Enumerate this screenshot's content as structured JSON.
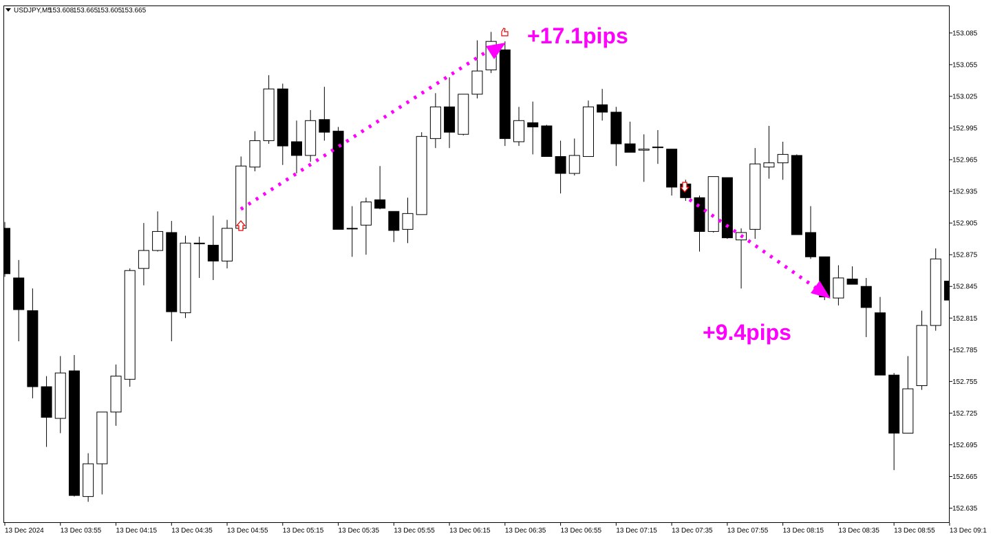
{
  "chart_data": {
    "type": "candlestick",
    "title": "USDJPY,M5",
    "header_values": [
      153.608,
      153.665,
      153.605,
      153.665
    ],
    "annotations": [
      "+17.1pips",
      "+9.4pips"
    ],
    "categories": [
      "13 Dec 2024",
      null,
      null,
      null,
      "13 Dec 03:55",
      null,
      null,
      null,
      "13 Dec 04:15",
      null,
      null,
      null,
      "13 Dec 04:35",
      null,
      null,
      null,
      "13 Dec 04:55",
      null,
      null,
      null,
      "13 Dec 05:15",
      null,
      null,
      null,
      "13 Dec 05:35",
      null,
      null,
      null,
      "13 Dec 05:55",
      null,
      null,
      null,
      "13 Dec 06:15",
      null,
      null,
      null,
      "13 Dec 06:35",
      null,
      null,
      null,
      "13 Dec 06:55",
      null,
      null,
      null,
      "13 Dec 07:15",
      null,
      null,
      null,
      "13 Dec 07:35",
      null,
      null,
      null,
      "13 Dec 07:55",
      null,
      null,
      null,
      "13 Dec 08:15",
      null,
      null,
      null,
      "13 Dec 08:35",
      null,
      null,
      null,
      "13 Dec 08:55",
      null,
      null,
      null,
      "13 Dec 09:1"
    ],
    "open": [
      152.9,
      152.853,
      152.822,
      152.75,
      152.72,
      152.765,
      152.646,
      152.677,
      152.726,
      152.757,
      152.862,
      152.879,
      152.896,
      152.82,
      152.886,
      152.884,
      152.869,
      152.9,
      152.958,
      152.983,
      153.032,
      152.982,
      152.969,
      153.003,
      152.992,
      152.9,
      152.903,
      152.927,
      152.916,
      152.899,
      152.913,
      152.985,
      153.015,
      152.989,
      153.027,
      153.05,
      153.069,
      152.982,
      153.0,
      152.997,
      152.968,
      152.952,
      152.968,
      153.017,
      153.01,
      152.98,
      152.974,
      152.977,
      152.975,
      152.942,
      152.929,
      152.897,
      152.948,
      152.889,
      152.899,
      152.958,
      152.962,
      152.969,
      152.896,
      152.873,
      152.834,
      152.852,
      152.845,
      152.82,
      152.761,
      152.706,
      152.751,
      152.808,
      152.85
    ],
    "high": [
      152.906,
      152.87,
      152.843,
      152.76,
      152.779,
      152.78,
      152.687,
      152.726,
      152.771,
      152.862,
      152.905,
      152.916,
      152.907,
      152.893,
      152.892,
      152.912,
      152.908,
      152.968,
      152.992,
      153.045,
      153.037,
      153.002,
      153.012,
      153.034,
      152.996,
      152.921,
      152.929,
      152.959,
      152.916,
      152.929,
      152.991,
      153.028,
      153.043,
      153.027,
      153.078,
      153.086,
      153.077,
      153.015,
      153.02,
      152.998,
      152.983,
      152.985,
      153.021,
      153.032,
      153.015,
      153.001,
      152.989,
      152.993,
      152.975,
      152.946,
      152.931,
      152.949,
      152.948,
      152.9,
      152.976,
      152.997,
      152.982,
      152.97,
      152.921,
      152.873,
      152.865,
      152.864,
      152.853,
      152.835,
      152.763,
      152.779,
      152.822,
      152.881,
      152.887
    ],
    "low": [
      152.854,
      152.793,
      152.739,
      152.693,
      152.706,
      152.646,
      152.641,
      152.648,
      152.713,
      152.75,
      152.846,
      152.878,
      152.793,
      152.815,
      152.853,
      152.851,
      152.862,
      152.898,
      152.954,
      152.98,
      152.96,
      152.952,
      152.963,
      152.983,
      152.899,
      152.873,
      152.875,
      152.918,
      152.887,
      152.886,
      152.913,
      152.976,
      152.976,
      152.988,
      153.023,
      153.047,
      152.978,
      152.978,
      152.97,
      152.968,
      152.933,
      152.95,
      152.968,
      153.002,
      152.959,
      152.972,
      152.944,
      152.961,
      152.931,
      152.926,
      152.878,
      152.896,
      152.89,
      152.843,
      152.89,
      152.947,
      152.946,
      152.894,
      152.871,
      152.832,
      152.827,
      152.847,
      152.797,
      152.761,
      152.671,
      152.706,
      152.747,
      152.803,
      152.815
    ],
    "close": [
      152.857,
      152.823,
      152.75,
      152.721,
      152.763,
      152.647,
      152.677,
      152.726,
      152.76,
      152.86,
      152.879,
      152.897,
      152.821,
      152.886,
      152.886,
      152.869,
      152.9,
      152.959,
      152.983,
      153.032,
      152.978,
      152.969,
      153.002,
      152.991,
      152.899,
      152.9,
      152.925,
      152.919,
      152.898,
      152.914,
      152.987,
      153.015,
      152.991,
      153.027,
      153.049,
      153.077,
      152.985,
      153.002,
      152.996,
      152.968,
      152.952,
      152.969,
      153.015,
      153.01,
      152.98,
      152.972,
      152.975,
      152.977,
      152.939,
      152.929,
      152.897,
      152.949,
      152.891,
      152.896,
      152.961,
      152.962,
      152.97,
      152.894,
      152.873,
      152.835,
      152.853,
      152.847,
      152.825,
      152.761,
      152.706,
      152.748,
      152.808,
      152.871,
      152.832
    ],
    "up_color": "#ffffff",
    "down_color": "#000000",
    "ylim": [
      152.621,
      153.111
    ],
    "yticks": [
      153.085,
      153.055,
      153.025,
      152.995,
      152.965,
      152.935,
      152.905,
      152.875,
      152.845,
      152.815,
      152.785,
      152.755,
      152.725,
      152.695,
      152.665,
      152.635
    ]
  }
}
